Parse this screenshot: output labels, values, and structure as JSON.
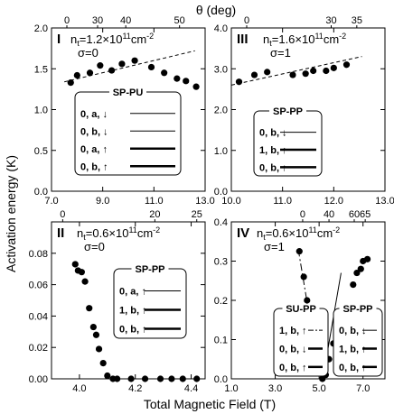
{
  "figure": {
    "top_label": "θ (deg)",
    "left_label": "Activation energy (K)",
    "bottom_label": "Total Magnetic Field (T)"
  },
  "chart_data": [
    {
      "type": "scatter",
      "panel": "I",
      "density": "n",
      "density_sub": "t",
      "density_value": "=1.2×10",
      "density_exp": "11",
      "density_unit": "cm",
      "density_unit_exp": "-2",
      "sigma": "σ=0",
      "xlim": [
        7.0,
        13.0
      ],
      "ylim": [
        0.0,
        2.0
      ],
      "x_ticks": [
        7.0,
        9.0,
        11.0,
        13.0
      ],
      "x_tick_labels": [
        "7.0",
        "9.0",
        "11.0",
        "13.0"
      ],
      "y_ticks": [
        0.0,
        0.5,
        1.0,
        1.5,
        2.0
      ],
      "y_tick_labels": [
        "0.0",
        "0.5",
        "1.0",
        "1.5",
        "2.0"
      ],
      "theta_ticks": [
        {
          "label": "0",
          "x": 7.6
        },
        {
          "label": "30",
          "x": 8.8
        },
        {
          "label": "40",
          "x": 9.9
        },
        {
          "label": "50",
          "x": 12.0
        }
      ],
      "points": [
        [
          7.75,
          1.33
        ],
        [
          8.0,
          1.42
        ],
        [
          8.5,
          1.45
        ],
        [
          8.9,
          1.54
        ],
        [
          9.35,
          1.48
        ],
        [
          9.75,
          1.56
        ],
        [
          10.25,
          1.6
        ],
        [
          10.9,
          1.52
        ],
        [
          11.4,
          1.45
        ],
        [
          11.9,
          1.38
        ],
        [
          12.25,
          1.35
        ],
        [
          12.65,
          1.28
        ]
      ],
      "fit_lines": [
        {
          "x": [
            7.5,
            12.6
          ],
          "y": [
            1.34,
            1.72
          ],
          "style": "dashed"
        }
      ],
      "legend": {
        "title": "SP-PU",
        "entries": [
          {
            "label": "0, a, ↓",
            "line": "thin"
          },
          {
            "label": "0, b, ↓",
            "line": "thin"
          },
          {
            "label": "0, a, ↑",
            "line": "thick"
          },
          {
            "label": "0, b, ↑",
            "line": "thick"
          }
        ]
      }
    },
    {
      "type": "scatter",
      "panel": "III",
      "density": "n",
      "density_sub": "t",
      "density_value": "=1.6×10",
      "density_exp": "11",
      "density_unit": "cm",
      "density_unit_exp": "-2",
      "sigma": "σ=1",
      "xlim": [
        10.0,
        13.0
      ],
      "ylim": [
        0.0,
        4.0
      ],
      "x_ticks": [
        10.0,
        11.0,
        12.0,
        13.0
      ],
      "x_tick_labels": [
        "10.0",
        "11.0",
        "12.0",
        "13.0"
      ],
      "y_ticks": [
        0.0,
        1.0,
        2.0,
        3.0,
        4.0
      ],
      "y_tick_labels": [
        "0.0",
        "1.0",
        "2.0",
        "3.0",
        "4.0"
      ],
      "theta_ticks": [
        {
          "label": "0",
          "x": 10.3
        },
        {
          "label": "30",
          "x": 11.95
        },
        {
          "label": "35",
          "x": 12.45
        }
      ],
      "points": [
        [
          10.15,
          2.68
        ],
        [
          10.45,
          2.85
        ],
        [
          10.7,
          2.92
        ],
        [
          11.2,
          2.85
        ],
        [
          11.45,
          2.88
        ],
        [
          11.6,
          2.95
        ],
        [
          11.85,
          2.95
        ],
        [
          12.0,
          3.02
        ],
        [
          12.25,
          3.1
        ]
      ],
      "fit_lines": [
        {
          "x": [
            10.0,
            12.55
          ],
          "y": [
            2.6,
            3.3
          ],
          "style": "dashed"
        }
      ],
      "legend": {
        "title": "SP-PP",
        "entries": [
          {
            "label": "0, b, ↓",
            "line": "thin"
          },
          {
            "label": "1, b, ↑",
            "line": "thick"
          },
          {
            "label": "0, b, ↑",
            "line": "thick"
          }
        ]
      }
    },
    {
      "type": "scatter",
      "panel": "II",
      "density": "n",
      "density_sub": "t",
      "density_value": "=0.6×10",
      "density_exp": "11",
      "density_unit": "cm",
      "density_unit_exp": "-2",
      "sigma": "σ=0",
      "xlim": [
        3.9,
        4.45
      ],
      "ylim": [
        0.0,
        0.1
      ],
      "x_ticks": [
        4.0,
        4.2,
        4.4
      ],
      "x_tick_labels": [
        "4.0",
        "4.2",
        "4.4"
      ],
      "y_ticks": [
        0.0,
        0.02,
        0.04,
        0.06,
        0.08
      ],
      "y_tick_labels": [
        "0.00",
        "0.02",
        "0.04",
        "0.06",
        "0.08"
      ],
      "theta_ticks": [
        {
          "label": "0",
          "x": 3.94
        },
        {
          "label": "20",
          "x": 4.27
        },
        {
          "label": "25",
          "x": 4.42
        }
      ],
      "points": [
        [
          3.985,
          0.073
        ],
        [
          3.995,
          0.069
        ],
        [
          4.008,
          0.068
        ],
        [
          4.02,
          0.062
        ],
        [
          4.035,
          0.045
        ],
        [
          4.05,
          0.033
        ],
        [
          4.06,
          0.028
        ],
        [
          4.07,
          0.019
        ],
        [
          4.085,
          0.01
        ],
        [
          4.1,
          0.002
        ],
        [
          4.12,
          0.0
        ],
        [
          4.135,
          0.0
        ],
        [
          4.185,
          0.0
        ],
        [
          4.235,
          0.0
        ],
        [
          4.29,
          0.0
        ],
        [
          4.33,
          0.0
        ],
        [
          4.37,
          0.0
        ],
        [
          4.42,
          0.0
        ]
      ],
      "fit_lines": [],
      "legend": {
        "title": "SP-PP",
        "entries": [
          {
            "label": "0, a, ↑",
            "line": "thin"
          },
          {
            "label": "1, b, ↑",
            "line": "thick"
          },
          {
            "label": "0, b, ↑",
            "line": "thick"
          }
        ]
      }
    },
    {
      "type": "scatter",
      "panel": "IV",
      "density": "n",
      "density_sub": "t",
      "density_value": "=0.6×10",
      "density_exp": "11",
      "density_unit": "cm",
      "density_unit_exp": "-2",
      "sigma": "σ=1",
      "xlim": [
        1.0,
        8.0
      ],
      "ylim": [
        0.0,
        0.4
      ],
      "x_ticks": [
        1.0,
        3.0,
        5.0,
        7.0
      ],
      "x_tick_labels": [
        "1.0",
        "3.0",
        "5.0",
        "7.0"
      ],
      "y_ticks": [
        0.0,
        0.1,
        0.2,
        0.3,
        0.4
      ],
      "y_tick_labels": [
        "0.0",
        "0.1",
        "0.2",
        "0.3",
        "0.4"
      ],
      "theta_ticks": [
        {
          "label": "0",
          "x": 4.25
        },
        {
          "label": "40",
          "x": 5.45
        },
        {
          "label": "60",
          "x": 6.6
        },
        {
          "label": "65",
          "x": 7.1
        }
      ],
      "points": [
        [
          4.1,
          0.325
        ],
        [
          4.3,
          0.26
        ],
        [
          4.45,
          0.2
        ],
        [
          4.6,
          0.15
        ],
        [
          4.75,
          0.075
        ],
        [
          4.85,
          0.04
        ],
        [
          4.97,
          0.02
        ],
        [
          5.15,
          0.0
        ],
        [
          5.3,
          0.01
        ],
        [
          5.45,
          0.05
        ],
        [
          5.65,
          0.09
        ],
        [
          6.55,
          0.24
        ],
        [
          6.72,
          0.27
        ],
        [
          6.9,
          0.28
        ],
        [
          7.0,
          0.3
        ],
        [
          7.2,
          0.305
        ]
      ],
      "fit_lines": [
        {
          "x": [
            4.05,
            5.05
          ],
          "y": [
            0.33,
            -0.005
          ],
          "style": "dashdot"
        },
        {
          "x": [
            5.15,
            6.0
          ],
          "y": [
            -0.005,
            0.27
          ],
          "style": "solid"
        }
      ],
      "legends": [
        {
          "title": "SU-PP",
          "entries": [
            {
              "label": "1, b, ↑",
              "line": "dashdot"
            },
            {
              "label": "0, b, ↓",
              "line": "thick"
            },
            {
              "label": "0, b, ↑",
              "line": "thick"
            }
          ]
        },
        {
          "title": "SP-PP",
          "entries": [
            {
              "label": "0, b, ↓",
              "line": "thin"
            },
            {
              "label": "1, b, ↑",
              "line": "thick"
            },
            {
              "label": "0, b, ↑",
              "line": "thick"
            }
          ]
        }
      ]
    }
  ]
}
